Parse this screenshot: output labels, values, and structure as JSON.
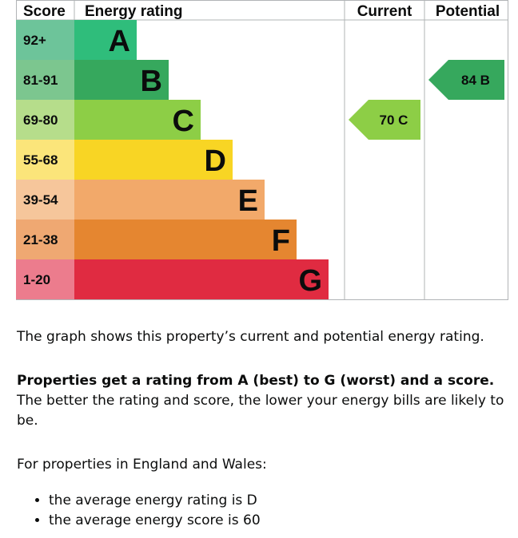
{
  "chart_data": {
    "type": "bar",
    "headers": {
      "score": "Score",
      "rating": "Energy rating",
      "current": "Current",
      "potential": "Potential"
    },
    "bands": [
      {
        "score": "92+",
        "letter": "A",
        "color": "#2fbd7b",
        "score_bg": "#6dc49a"
      },
      {
        "score": "81-91",
        "letter": "B",
        "color": "#36a85d",
        "score_bg": "#7cc68f"
      },
      {
        "score": "69-80",
        "letter": "C",
        "color": "#8dce46",
        "score_bg": "#b6dd8b"
      },
      {
        "score": "55-68",
        "letter": "D",
        "color": "#f8d524",
        "score_bg": "#fbe57a"
      },
      {
        "score": "39-54",
        "letter": "E",
        "color": "#f2a96a",
        "score_bg": "#f6c69b"
      },
      {
        "score": "21-38",
        "letter": "F",
        "color": "#e58630",
        "score_bg": "#efa872"
      },
      {
        "score": "1-20",
        "letter": "G",
        "color": "#e02b41",
        "score_bg": "#ec7c8d"
      }
    ],
    "current": {
      "score": 70,
      "letter": "C",
      "label": "70 C",
      "color": "#8dce46"
    },
    "potential": {
      "score": 84,
      "letter": "B",
      "label": "84 B",
      "color": "#36a85d"
    }
  },
  "text": {
    "intro": "The graph shows this property’s current and potential energy rating.",
    "rating_bold": "Properties get a rating from A (best) to G (worst) and a score.",
    "rating_rest": " The better the rating and score, the lower your energy bills are likely to be.",
    "region": "For properties in England and Wales:",
    "averages": [
      "the average energy rating is D",
      "the average energy score is 60"
    ]
  }
}
